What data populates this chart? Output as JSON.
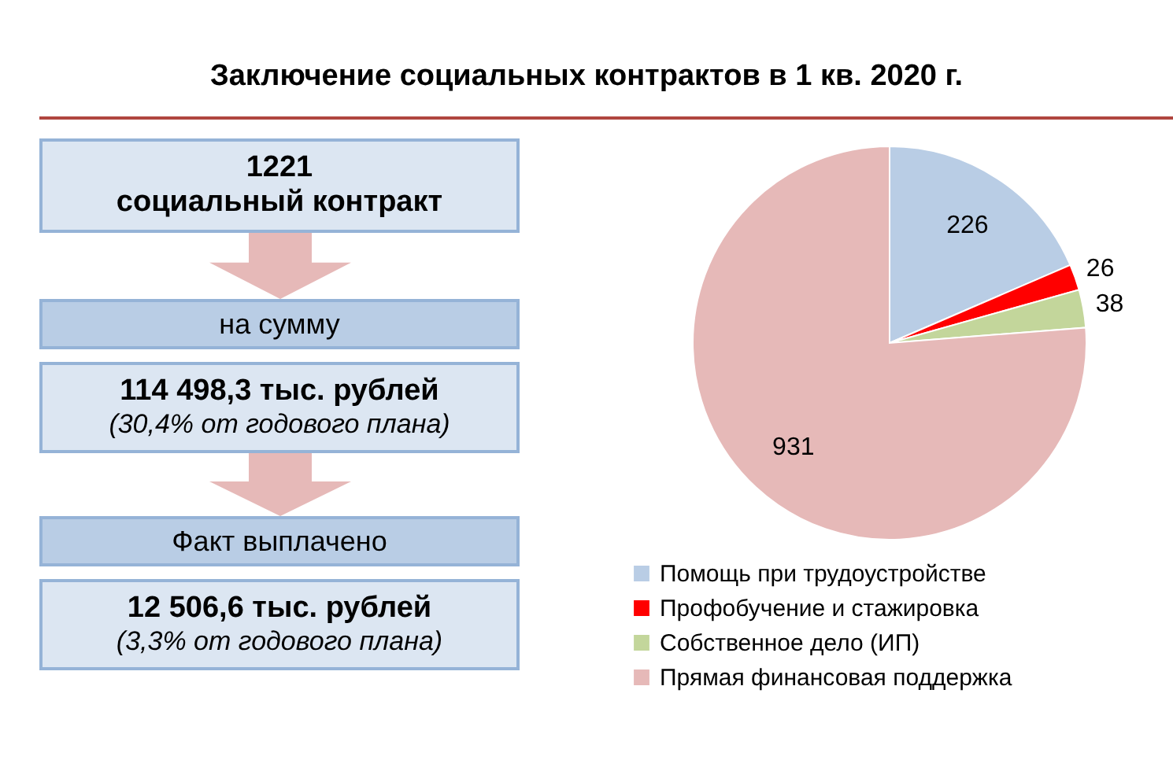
{
  "chart_data": {
    "type": "pie",
    "title": "Заключение социальных контрактов в 1 кв. 2020 г.",
    "categories": [
      "Помощь при трудоустройстве",
      "Профобучение и стажировка",
      "Собственное дело (ИП)",
      "Прямая финансовая поддержка"
    ],
    "values": [
      226,
      26,
      38,
      931
    ],
    "colors": [
      "#b9cde5",
      "#ff0000",
      "#c3d69b",
      "#e6b9b8"
    ],
    "data_labels": true,
    "legend": "bottom",
    "annotations": [
      "1221",
      "социальный контракт",
      "на сумму",
      "114 498,3 тыс. рублей",
      "(30,4% от годового плана)",
      "Факт выплачено",
      "12 506,6 тыс. рублей",
      "(3,3% от годового плана)"
    ]
  }
}
